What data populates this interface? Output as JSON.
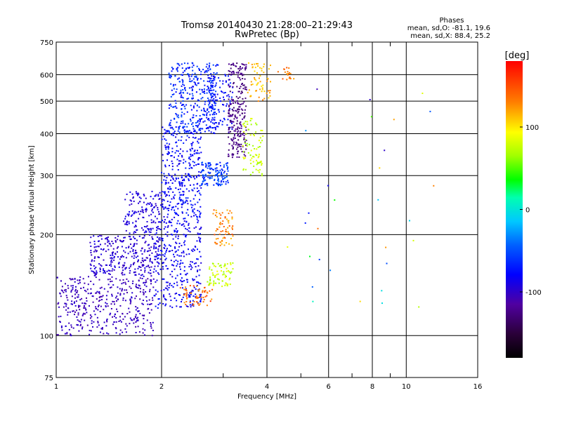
{
  "chart_data": {
    "type": "scatter",
    "title": "Tromsø 20140430 21:28:00–21:29:43",
    "subtitle": "RwPretec (Bp)",
    "xlabel": "Frequency [MHz]",
    "ylabel": "Stationary phase Virtual Height [km]",
    "x_scale": "log",
    "y_scale": "log",
    "xlim": [
      1,
      16
    ],
    "ylim": [
      75,
      750
    ],
    "x_ticks": [
      1,
      2,
      4,
      6,
      8,
      10,
      16
    ],
    "x_tick_labels": [
      "1",
      "2",
      "4",
      "6",
      "8",
      "10",
      "16"
    ],
    "x_minor_ticks": [
      3,
      5,
      7,
      9
    ],
    "y_ticks": [
      75,
      100,
      200,
      300,
      400,
      500,
      600,
      750
    ],
    "y_tick_labels": [
      "75",
      "100",
      "200",
      "300",
      "400",
      "500",
      "600",
      "750"
    ],
    "grid": true,
    "phase_stats": {
      "heading": "Phases",
      "line_o": "mean, sd,O: -81.1, 19.6",
      "line_x": "mean, sd,X:  88.4, 25.2"
    },
    "colorbar": {
      "unit_label": "[deg]",
      "range": [
        -180,
        180
      ],
      "ticks": [
        100,
        0,
        -100
      ],
      "tick_labels": [
        "100",
        "0",
        "-100"
      ]
    },
    "colors": {
      "frame": "#000000",
      "grid": "#000000"
    },
    "clusters": [
      {
        "f": [
          1.0,
          1.9
        ],
        "h": [
          100,
          150
        ],
        "phase": [
          -112,
          -95
        ],
        "count": 420
      },
      {
        "f": [
          1.25,
          2.0
        ],
        "h": [
          150,
          200
        ],
        "phase": [
          -105,
          -88
        ],
        "count": 300
      },
      {
        "f": [
          1.55,
          2.1
        ],
        "h": [
          200,
          270
        ],
        "phase": [
          -100,
          -85
        ],
        "count": 160
      },
      {
        "f": [
          1.9,
          2.6
        ],
        "h": [
          120,
          220
        ],
        "phase": [
          -95,
          -72
        ],
        "count": 320
      },
      {
        "f": [
          2.0,
          2.6
        ],
        "h": [
          220,
          420
        ],
        "phase": [
          -92,
          -65
        ],
        "count": 340
      },
      {
        "f": [
          2.1,
          2.9
        ],
        "h": [
          400,
          650
        ],
        "phase": [
          -85,
          -50
        ],
        "count": 360
      },
      {
        "f": [
          2.6,
          3.1
        ],
        "h": [
          280,
          330
        ],
        "phase": [
          -75,
          -40
        ],
        "count": 130
      },
      {
        "f": [
          2.7,
          3.2
        ],
        "h": [
          400,
          600
        ],
        "phase": [
          -92,
          -60
        ],
        "count": 120
      },
      {
        "f": [
          3.1,
          3.5
        ],
        "h": [
          340,
          650
        ],
        "phase": [
          -135,
          -115
        ],
        "count": 240
      },
      {
        "f": [
          2.25,
          2.8
        ],
        "h": [
          123,
          142
        ],
        "phase": [
          120,
          160
        ],
        "count": 60
      },
      {
        "f": [
          2.7,
          3.2
        ],
        "h": [
          140,
          165
        ],
        "phase": [
          60,
          95
        ],
        "count": 70
      },
      {
        "f": [
          2.8,
          3.2
        ],
        "h": [
          185,
          240
        ],
        "phase": [
          110,
          150
        ],
        "count": 70
      },
      {
        "f": [
          3.4,
          3.9
        ],
        "h": [
          300,
          450
        ],
        "phase": [
          60,
          90
        ],
        "count": 80
      },
      {
        "f": [
          3.5,
          4.1
        ],
        "h": [
          500,
          650
        ],
        "phase": [
          100,
          130
        ],
        "count": 60
      },
      {
        "f": [
          4.3,
          4.8
        ],
        "h": [
          580,
          630
        ],
        "phase": [
          120,
          150
        ],
        "count": 20
      },
      {
        "f": [
          4.5,
          12
        ],
        "h": [
          120,
          600
        ],
        "phase": [
          -110,
          150
        ],
        "count": 30
      }
    ]
  }
}
